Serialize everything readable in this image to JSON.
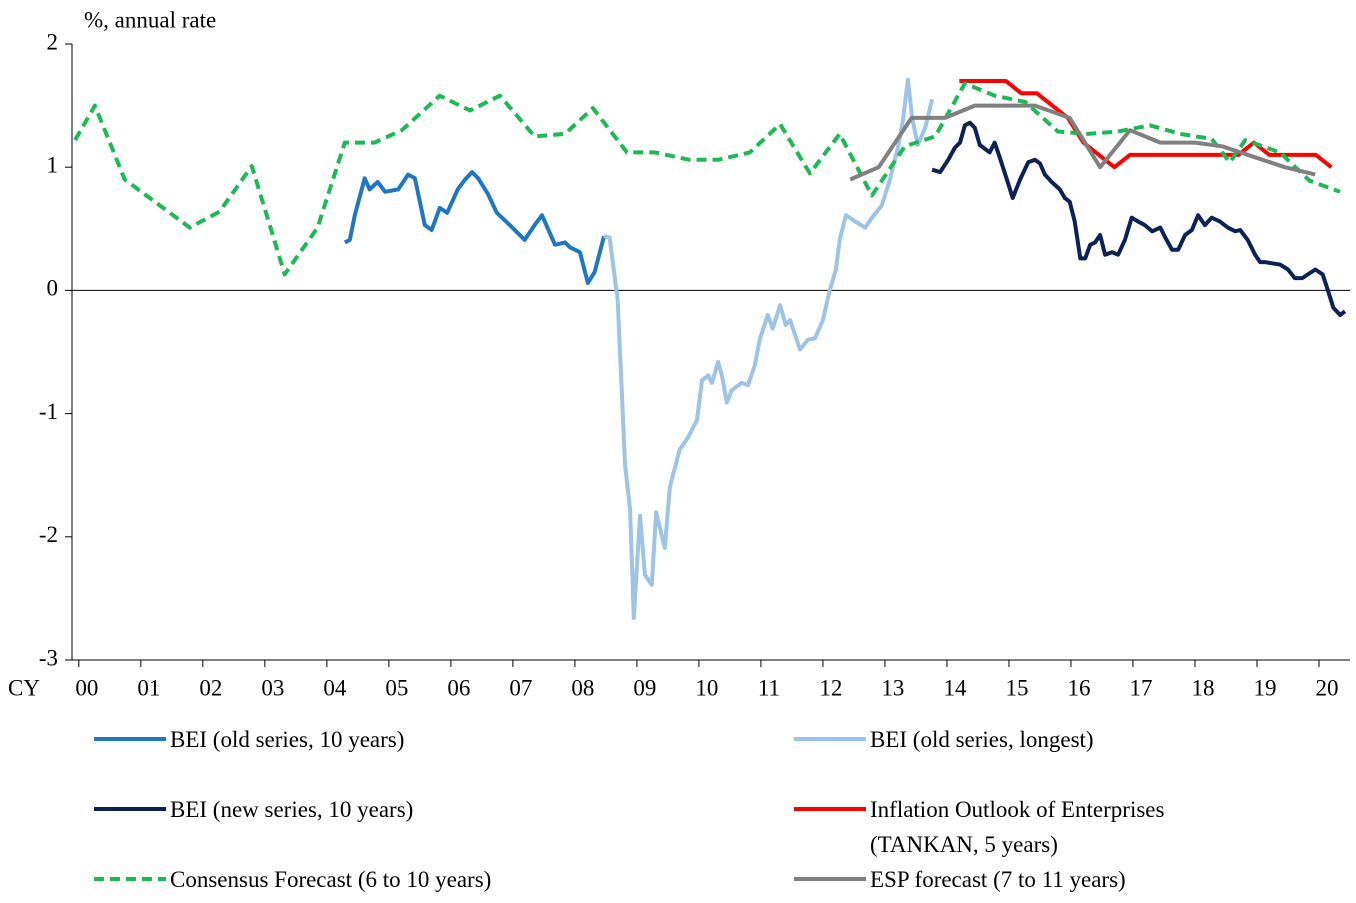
{
  "chart_data": {
    "type": "line",
    "y_label": "%, annual rate",
    "x_label": "CY",
    "xlim": [
      -0.11,
      20.5
    ],
    "ylim": [
      -3,
      2
    ],
    "xticks": [
      {
        "value": 0,
        "label": "00"
      },
      {
        "value": 1,
        "label": "01"
      },
      {
        "value": 2,
        "label": "02"
      },
      {
        "value": 3,
        "label": "03"
      },
      {
        "value": 4,
        "label": "04"
      },
      {
        "value": 5,
        "label": "05"
      },
      {
        "value": 6,
        "label": "06"
      },
      {
        "value": 7,
        "label": "07"
      },
      {
        "value": 8,
        "label": "08"
      },
      {
        "value": 9,
        "label": "09"
      },
      10,
      11,
      12,
      13,
      14,
      15,
      16,
      17,
      18,
      19,
      20
    ],
    "yticks": [
      2,
      1,
      0,
      -1,
      -2,
      -3
    ],
    "zero_line": true,
    "legend": "bottom",
    "series": [
      {
        "name": "BEI (old series, 10 years)",
        "color": "#1f77c4",
        "style": "solid",
        "x": [
          4.29,
          4.37,
          4.45,
          4.61,
          4.69,
          4.82,
          4.94,
          5.15,
          5.31,
          5.42,
          5.58,
          5.69,
          5.82,
          5.94,
          6.11,
          6.23,
          6.34,
          6.44,
          6.6,
          6.74,
          6.95,
          7.19,
          7.35,
          7.47,
          7.68,
          7.84,
          7.92,
          8.08,
          8.21,
          8.32,
          8.47
        ],
        "values": [
          0.39,
          0.41,
          0.61,
          0.91,
          0.82,
          0.88,
          0.8,
          0.82,
          0.94,
          0.91,
          0.53,
          0.49,
          0.67,
          0.63,
          0.82,
          0.9,
          0.96,
          0.91,
          0.78,
          0.63,
          0.53,
          0.41,
          0.53,
          0.61,
          0.37,
          0.39,
          0.35,
          0.31,
          0.06,
          0.15,
          0.44
        ]
      },
      {
        "name": "BEI (old series, longest)",
        "color": "#9dc3e6",
        "style": "solid",
        "x": [
          8.47,
          8.56,
          8.69,
          8.81,
          8.89,
          8.95,
          9.05,
          9.13,
          9.24,
          9.31,
          9.45,
          9.53,
          9.69,
          9.82,
          9.97,
          10.05,
          10.15,
          10.21,
          10.31,
          10.37,
          10.45,
          10.53,
          10.69,
          10.79,
          10.9,
          10.98,
          11.11,
          11.19,
          11.31,
          11.4,
          11.47,
          11.63,
          11.76,
          11.87,
          12.0,
          12.11,
          12.21,
          12.27,
          12.37,
          12.52,
          12.68,
          12.79,
          12.95,
          13.08,
          13.21,
          13.29,
          13.37,
          13.44,
          13.53,
          13.65,
          13.76
        ],
        "values": [
          0.44,
          0.43,
          -0.08,
          -1.42,
          -1.78,
          -2.66,
          -1.83,
          -2.31,
          -2.39,
          -1.8,
          -2.09,
          -1.6,
          -1.29,
          -1.2,
          -1.05,
          -0.73,
          -0.69,
          -0.75,
          -0.58,
          -0.69,
          -0.91,
          -0.81,
          -0.75,
          -0.77,
          -0.61,
          -0.4,
          -0.2,
          -0.31,
          -0.12,
          -0.28,
          -0.24,
          -0.48,
          -0.4,
          -0.39,
          -0.24,
          0.0,
          0.17,
          0.41,
          0.61,
          0.56,
          0.51,
          0.59,
          0.69,
          0.9,
          1.16,
          1.38,
          1.71,
          1.4,
          1.18,
          1.32,
          1.55
        ]
      },
      {
        "name": "BEI (new series, 10 years)",
        "color": "#0b2157",
        "style": "solid",
        "x": [
          13.76,
          13.89,
          14.02,
          14.13,
          14.21,
          14.29,
          14.37,
          14.45,
          14.53,
          14.69,
          14.77,
          14.85,
          14.98,
          15.06,
          15.18,
          15.31,
          15.42,
          15.5,
          15.58,
          15.69,
          15.82,
          15.9,
          15.98,
          16.06,
          16.15,
          16.23,
          16.31,
          16.39,
          16.47,
          16.55,
          16.66,
          16.76,
          16.87,
          16.98,
          17.08,
          17.19,
          17.31,
          17.44,
          17.52,
          17.63,
          17.73,
          17.84,
          17.95,
          18.05,
          18.16,
          18.27,
          18.4,
          18.53,
          18.65,
          18.73,
          18.85,
          18.97,
          19.05,
          19.13,
          19.24,
          19.37,
          19.5,
          19.61,
          19.73,
          19.82,
          19.94,
          20.06,
          20.15,
          20.23,
          20.34,
          20.42
        ],
        "values": [
          0.98,
          0.96,
          1.06,
          1.16,
          1.2,
          1.34,
          1.36,
          1.32,
          1.18,
          1.12,
          1.2,
          1.08,
          0.88,
          0.75,
          0.9,
          1.04,
          1.06,
          1.03,
          0.94,
          0.88,
          0.82,
          0.75,
          0.72,
          0.56,
          0.26,
          0.26,
          0.37,
          0.39,
          0.45,
          0.29,
          0.31,
          0.29,
          0.41,
          0.59,
          0.56,
          0.53,
          0.48,
          0.51,
          0.43,
          0.33,
          0.33,
          0.45,
          0.49,
          0.61,
          0.53,
          0.59,
          0.56,
          0.51,
          0.48,
          0.49,
          0.41,
          0.29,
          0.23,
          0.23,
          0.22,
          0.21,
          0.17,
          0.1,
          0.1,
          0.13,
          0.17,
          0.13,
          -0.01,
          -0.14,
          -0.2,
          -0.17
        ]
      },
      {
        "name": "Inflation Outlook of Enterprises (TANKAN, 5 years)",
        "color": "#ff0000",
        "style": "solid",
        "x": [
          14.2,
          14.95,
          15.2,
          15.45,
          15.95,
          16.2,
          16.7,
          16.95,
          18.7,
          18.95,
          19.2,
          19.95,
          20.2
        ],
        "values": [
          1.7,
          1.7,
          1.6,
          1.6,
          1.4,
          1.2,
          1.0,
          1.1,
          1.1,
          1.2,
          1.1,
          1.1,
          1.0
        ]
      },
      {
        "name": "Consensus Forecast (6 to 10 years)",
        "color": "#1db954",
        "style": "dashed",
        "x": [
          -0.06,
          0.26,
          0.74,
          1.79,
          2.27,
          2.79,
          3.32,
          3.85,
          4.29,
          4.77,
          5.21,
          5.82,
          6.31,
          6.79,
          7.35,
          7.84,
          8.29,
          8.84,
          9.29,
          9.85,
          10.31,
          10.82,
          11.31,
          11.79,
          12.27,
          12.79,
          13.32,
          13.81,
          14.29,
          14.77,
          15.26,
          15.79,
          16.27,
          16.76,
          17.27,
          17.76,
          18.27,
          18.56,
          18.81,
          19.37,
          19.85,
          20.34
        ],
        "values": [
          1.22,
          1.5,
          0.9,
          0.51,
          0.64,
          1.01,
          0.13,
          0.51,
          1.2,
          1.2,
          1.3,
          1.58,
          1.46,
          1.58,
          1.25,
          1.27,
          1.48,
          1.12,
          1.12,
          1.06,
          1.06,
          1.12,
          1.35,
          0.95,
          1.27,
          0.77,
          1.17,
          1.25,
          1.68,
          1.58,
          1.53,
          1.29,
          1.27,
          1.29,
          1.34,
          1.27,
          1.23,
          1.04,
          1.22,
          1.12,
          0.89,
          0.8
        ]
      },
      {
        "name": "ESP forecast (7 to 11 years)",
        "color": "#808080",
        "style": "solid",
        "x": [
          12.44,
          12.9,
          13.43,
          13.97,
          14.45,
          15.42,
          15.98,
          16.47,
          16.95,
          17.44,
          18.0,
          18.44,
          18.97,
          19.45,
          19.94
        ],
        "values": [
          0.9,
          1.0,
          1.4,
          1.4,
          1.5,
          1.5,
          1.4,
          1.0,
          1.3,
          1.2,
          1.2,
          1.17,
          1.08,
          1.0,
          0.94
        ]
      }
    ]
  }
}
